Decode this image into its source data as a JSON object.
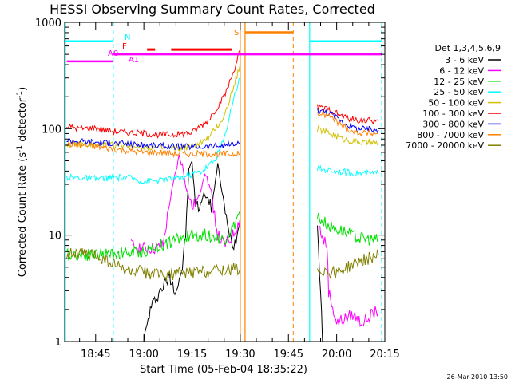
{
  "chart_data": {
    "type": "line",
    "title": "HESSI Observing Summary Count Rates, Corrected",
    "xlabel": "Start Time (05-Feb-04 18:35:22)",
    "ylabel_main": "Corrected Count Rate (s",
    "ylabel_sup1": "-1",
    "ylabel_mid": " detector",
    "ylabel_sup2": "-1",
    "ylabel_end": ")",
    "yscale": "log",
    "ylim": [
      1,
      1000
    ],
    "xlim": [
      "18:35:22",
      "20:15:00"
    ],
    "y_ticks": [
      {
        "value": 1,
        "label": "1"
      },
      {
        "value": 10,
        "label": "10"
      },
      {
        "value": 100,
        "label": "100"
      },
      {
        "value": 1000,
        "label": "1000"
      }
    ],
    "x_ticks": [
      {
        "time": "18:45",
        "label": "18:45"
      },
      {
        "time": "19:00",
        "label": "19:00"
      },
      {
        "time": "19:15",
        "label": "19:15"
      },
      {
        "time": "19:30",
        "label": "19:30"
      },
      {
        "time": "19:45",
        "label": "19:45"
      },
      {
        "time": "20:00",
        "label": "20:00"
      },
      {
        "time": "20:15",
        "label": "20:15"
      }
    ],
    "legend_header": "Det 1,3,4,5,6,9",
    "legend_placement": "right",
    "series": [
      {
        "name": "3 - 6 keV",
        "color": "#000000",
        "segments": [
          {
            "points": [
              [
                "19:00",
                1
              ],
              [
                "19:02",
                2
              ],
              [
                "19:05",
                3
              ],
              [
                "19:08",
                4
              ],
              [
                "19:10",
                3
              ],
              [
                "19:12",
                5
              ],
              [
                "19:13",
                10
              ],
              [
                "19:14",
                40
              ],
              [
                "19:15",
                50
              ],
              [
                "19:16",
                20
              ],
              [
                "19:17",
                18
              ],
              [
                "19:19",
                25
              ],
              [
                "19:21",
                18
              ],
              [
                "19:23",
                45
              ],
              [
                "19:24",
                30
              ],
              [
                "19:26",
                12
              ],
              [
                "19:28",
                8
              ],
              [
                "19:29",
                10
              ],
              [
                "19:29.9",
                14
              ]
            ]
          },
          {
            "points": [
              [
                "19:54",
                12
              ],
              [
                "19:55",
                3
              ],
              [
                "19:55.6",
                1
              ]
            ]
          }
        ]
      },
      {
        "name": "6 - 12 keV",
        "color": "#ff00ff",
        "segments": [
          {
            "points": [
              [
                "18:56",
                8
              ],
              [
                "19:00",
                7.5
              ],
              [
                "19:04",
                7.5
              ],
              [
                "19:06",
                8
              ],
              [
                "19:08",
                20
              ],
              [
                "19:10",
                40
              ],
              [
                "19:11",
                55
              ],
              [
                "19:12",
                45
              ],
              [
                "19:13",
                30
              ],
              [
                "19:15",
                18
              ],
              [
                "19:17",
                22
              ],
              [
                "19:19",
                40
              ],
              [
                "19:21",
                25
              ],
              [
                "19:23",
                10
              ],
              [
                "19:25",
                8
              ],
              [
                "19:27",
                9
              ],
              [
                "19:29",
                12
              ],
              [
                "19:29.9",
                14
              ]
            ]
          },
          {
            "points": [
              [
                "19:54.5",
                12
              ],
              [
                "19:56",
                9
              ],
              [
                "19:57",
                8
              ],
              [
                "19:57.5",
                3
              ],
              [
                "20:00",
                1.5
              ],
              [
                "20:05",
                1.8
              ],
              [
                "20:08",
                1.5
              ],
              [
                "20:13",
                2
              ]
            ]
          }
        ]
      },
      {
        "name": "12 - 25 keV",
        "color": "#00e000",
        "segments": [
          {
            "points": [
              [
                "18:36",
                6.5
              ],
              [
                "18:45",
                6.6
              ],
              [
                "18:55",
                6.8
              ],
              [
                "19:00",
                7
              ],
              [
                "19:05",
                8
              ],
              [
                "19:10",
                9
              ],
              [
                "19:15",
                10
              ],
              [
                "19:20",
                10
              ],
              [
                "19:25",
                9
              ],
              [
                "19:28",
                12
              ],
              [
                "19:29.9",
                17
              ]
            ]
          },
          {
            "points": [
              [
                "19:54",
                15
              ],
              [
                "19:58",
                12
              ],
              [
                "20:02",
                11
              ],
              [
                "20:06",
                9.5
              ],
              [
                "20:13",
                9
              ]
            ]
          }
        ]
      },
      {
        "name": "25 - 50 keV",
        "color": "#00ffff",
        "segments": [
          {
            "points": [
              [
                "18:36",
                35
              ],
              [
                "18:45",
                34
              ],
              [
                "18:55",
                35
              ],
              [
                "19:00",
                32
              ],
              [
                "19:06",
                33
              ],
              [
                "19:12",
                35
              ],
              [
                "19:18",
                40
              ],
              [
                "19:22",
                50
              ],
              [
                "19:25",
                80
              ],
              [
                "19:28",
                200
              ],
              [
                "19:29.9",
                300
              ]
            ]
          },
          {
            "points": [
              [
                "19:54",
                42
              ],
              [
                "20:00",
                40
              ],
              [
                "20:06",
                38
              ],
              [
                "20:13",
                38
              ]
            ]
          }
        ]
      },
      {
        "name": "50 - 100 keV",
        "color": "#d0c000",
        "segments": [
          {
            "points": [
              [
                "18:36",
                72
              ],
              [
                "18:45",
                70
              ],
              [
                "18:55",
                70
              ],
              [
                "19:00",
                68
              ],
              [
                "19:05",
                66
              ],
              [
                "19:10",
                65
              ],
              [
                "19:15",
                68
              ],
              [
                "19:20",
                80
              ],
              [
                "19:25",
                130
              ],
              [
                "19:28",
                250
              ],
              [
                "19:29.9",
                400
              ]
            ]
          },
          {
            "points": [
              [
                "19:54",
                100
              ],
              [
                "19:58",
                90
              ],
              [
                "20:02",
                80
              ],
              [
                "20:06",
                75
              ],
              [
                "20:13",
                73
              ]
            ]
          }
        ]
      },
      {
        "name": "100 - 300 keV",
        "color": "#ff0000",
        "segments": [
          {
            "points": [
              [
                "18:36",
                105
              ],
              [
                "18:40",
                100
              ],
              [
                "18:45",
                102
              ],
              [
                "18:50",
                95
              ],
              [
                "18:55",
                92
              ],
              [
                "19:00",
                90
              ],
              [
                "19:05",
                88
              ],
              [
                "19:10",
                88
              ],
              [
                "19:15",
                92
              ],
              [
                "19:20",
                120
              ],
              [
                "19:25",
                200
              ],
              [
                "19:28",
                350
              ],
              [
                "19:29.9",
                550
              ]
            ]
          },
          {
            "points": [
              [
                "19:54",
                160
              ],
              [
                "19:58",
                150
              ],
              [
                "20:02",
                130
              ],
              [
                "20:06",
                120
              ],
              [
                "20:13",
                118
              ]
            ]
          }
        ]
      },
      {
        "name": "300 - 800 keV",
        "color": "#0000ff",
        "segments": [
          {
            "points": [
              [
                "18:36",
                78
              ],
              [
                "18:45",
                75
              ],
              [
                "18:55",
                72
              ],
              [
                "19:00",
                70
              ],
              [
                "19:05",
                69
              ],
              [
                "19:10",
                68
              ],
              [
                "19:15",
                68
              ],
              [
                "19:20",
                68
              ],
              [
                "19:25",
                70
              ],
              [
                "19:29.9",
                72
              ]
            ]
          },
          {
            "points": [
              [
                "19:54",
                150
              ],
              [
                "19:58",
                140
              ],
              [
                "20:02",
                115
              ],
              [
                "20:06",
                100
              ],
              [
                "20:13",
                97
              ]
            ]
          }
        ]
      },
      {
        "name": "800 - 7000 keV",
        "color": "#ff8000",
        "segments": [
          {
            "points": [
              [
                "18:36",
                72
              ],
              [
                "18:45",
                68
              ],
              [
                "18:55",
                62
              ],
              [
                "19:00",
                60
              ],
              [
                "19:05",
                60
              ],
              [
                "19:10",
                58
              ],
              [
                "19:15",
                58
              ],
              [
                "19:20",
                58
              ],
              [
                "19:25",
                58
              ],
              [
                "19:29.9",
                58
              ]
            ]
          },
          {
            "points": [
              [
                "19:54",
                140
              ],
              [
                "19:58",
                130
              ],
              [
                "20:02",
                105
              ],
              [
                "20:06",
                92
              ],
              [
                "20:13",
                90
              ]
            ]
          }
        ]
      },
      {
        "name": "7000 - 20000 keV",
        "color": "#808000",
        "segments": [
          {
            "points": [
              [
                "18:36",
                6.8
              ],
              [
                "18:45",
                6.5
              ],
              [
                "18:55",
                4.6
              ],
              [
                "19:00",
                4.5
              ],
              [
                "19:05",
                4.2
              ],
              [
                "19:10",
                4.3
              ],
              [
                "19:15",
                4.5
              ],
              [
                "19:20",
                4.6
              ],
              [
                "19:25",
                4.8
              ],
              [
                "19:29.9",
                4.8
              ]
            ]
          },
          {
            "points": [
              [
                "19:54",
                4.8
              ],
              [
                "19:58",
                4.5
              ],
              [
                "20:02",
                4.7
              ],
              [
                "20:06",
                5.5
              ],
              [
                "20:13",
                6.5
              ]
            ]
          }
        ]
      }
    ],
    "annotations": [
      {
        "text": "N",
        "color": "#00ffff"
      },
      {
        "text": "F",
        "color": "#ff0000"
      },
      {
        "text": "S",
        "color": "#ff8000"
      },
      {
        "text": "A0",
        "color": "#ff00ff"
      },
      {
        "text": "A1",
        "color": "#ff00ff"
      }
    ],
    "footer_timestamp": "26-Mar-2010 13:50"
  },
  "colors": {
    "night": "#00ffff",
    "flare": "#ff0000",
    "saa": "#ff8000",
    "attenuator": "#ff00ff"
  }
}
